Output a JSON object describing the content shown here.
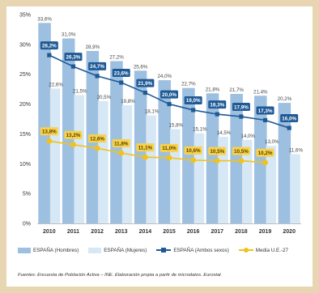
{
  "chart_data": {
    "type": "bar",
    "title": "",
    "xlabel": "",
    "ylabel": "",
    "categories": [
      "2010",
      "2011",
      "2012",
      "2013",
      "2014",
      "2015",
      "2016",
      "2017",
      "2018",
      "2019",
      "2020"
    ],
    "ylim": [
      0,
      35
    ],
    "yticks": [
      0,
      5,
      10,
      15,
      20,
      25,
      30,
      35
    ],
    "ytick_labels": [
      "0%",
      "5%",
      "10%",
      "15%",
      "20%",
      "25%",
      "30%",
      "35%"
    ],
    "grid": false,
    "legend_position": "bottom",
    "series": [
      {
        "name": "ESPAÑA (Hombres)",
        "kind": "bar",
        "color": "#9dbfe0",
        "values": [
          33.6,
          31.0,
          28.9,
          27.2,
          25.6,
          24.0,
          22.7,
          21.8,
          21.7,
          21.4,
          20.2
        ],
        "labels": [
          "33,6%",
          "31,0%",
          "28,9%",
          "27,2%",
          "25,6%",
          "24,0%",
          "22,7%",
          "21,8%",
          "21,7%",
          "21,4%",
          "20,2%"
        ]
      },
      {
        "name": "ESPAÑA (Mujeres)",
        "kind": "bar",
        "color": "#d6e7f5",
        "values": [
          22.6,
          21.5,
          20.5,
          19.8,
          18.1,
          15.8,
          15.1,
          14.5,
          14.0,
          13.0,
          11.6
        ],
        "labels": [
          "22,6%",
          "21,5%",
          "20,5%",
          "19,8%",
          "18,1%",
          "15,8%",
          "15,1%",
          "14,5%",
          "14,0%",
          "13,0%",
          "11,6%"
        ]
      },
      {
        "name": "ESPAÑA (Ambos sexos)",
        "kind": "line",
        "marker": "square",
        "color": "#1f5a96",
        "values": [
          28.2,
          26.3,
          24.7,
          23.6,
          21.9,
          20.0,
          19.0,
          18.3,
          17.9,
          17.3,
          16.0
        ],
        "labels": [
          "28,2%",
          "26,3%",
          "24,7%",
          "23,6%",
          "21,9%",
          "20,0%",
          "19,0%",
          "18,3%",
          "17,9%",
          "17,3%",
          "16,0%"
        ]
      },
      {
        "name": "Media U.E.-27",
        "kind": "line",
        "marker": "circle",
        "color": "#f2c218",
        "values": [
          13.8,
          13.2,
          12.6,
          11.8,
          11.1,
          11.0,
          10.6,
          10.5,
          10.5,
          10.2,
          null
        ],
        "labels": [
          "13,8%",
          "13,2%",
          "12,6%",
          "11,8%",
          "11,1%",
          "11,0%",
          "10,6%",
          "10,5%",
          "10,5%",
          "10,2%",
          ""
        ]
      }
    ]
  },
  "source_note": "Fuentes: Encuesta de Población Activa – INE. Elaboración propia a partir de microdatos. Eurostat"
}
